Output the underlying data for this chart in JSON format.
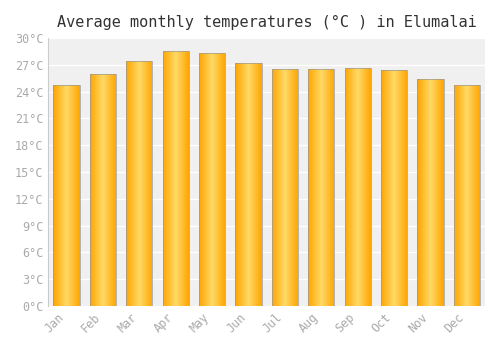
{
  "title": "Average monthly temperatures (°C ) in Elumalai",
  "months": [
    "Jan",
    "Feb",
    "Mar",
    "Apr",
    "May",
    "Jun",
    "Jul",
    "Aug",
    "Sep",
    "Oct",
    "Nov",
    "Dec"
  ],
  "temperatures": [
    24.8,
    26.0,
    27.4,
    28.6,
    28.3,
    27.2,
    26.5,
    26.5,
    26.6,
    26.4,
    25.4,
    24.7
  ],
  "bar_color_center": "#FFD966",
  "bar_color_edge": "#FFA500",
  "bar_border_color": "#999999",
  "ylim": [
    0,
    30
  ],
  "ytick_step": 3,
  "background_color": "#ffffff",
  "plot_bg_color": "#f0f0f0",
  "grid_color": "#ffffff",
  "title_fontsize": 11,
  "tick_fontsize": 8.5,
  "title_color": "#333333",
  "tick_color": "#aaaaaa"
}
